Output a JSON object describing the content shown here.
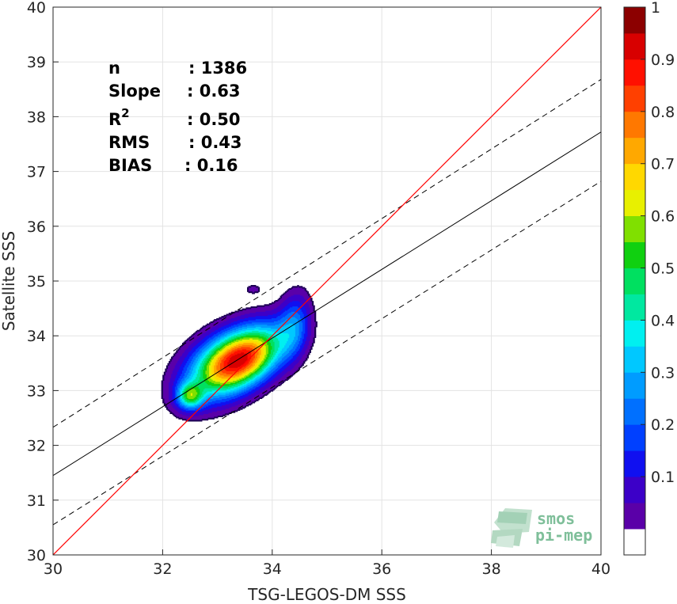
{
  "chart_data": {
    "type": "heatmap",
    "subtype": "filled-contour-density",
    "xlabel": "TSG-LEGOS-DM SSS",
    "ylabel": "Satellite SSS",
    "xlim": [
      30,
      40
    ],
    "ylim": [
      30,
      40
    ],
    "xticks": [
      30,
      32,
      34,
      36,
      38,
      40
    ],
    "yticks": [
      30,
      31,
      32,
      33,
      34,
      35,
      36,
      37,
      38,
      39,
      40
    ],
    "grid": true,
    "stats": [
      {
        "label": "n",
        "value": ": 1386"
      },
      {
        "label": "Slope",
        "value": ": 0.63"
      },
      {
        "label": "R",
        "sup": "2",
        "value": ": 0.50"
      },
      {
        "label": "RMS",
        "value": ": 0.43"
      },
      {
        "label": "BIAS",
        "value": ": 0.16"
      }
    ],
    "lines": {
      "identity": {
        "color": "#ff0000",
        "x": [
          30,
          40
        ],
        "y": [
          30,
          40
        ]
      },
      "fit": {
        "color": "#000000",
        "x": [
          30,
          40
        ],
        "y": [
          31.45,
          37.72
        ]
      },
      "fit_upper": {
        "color": "#000000",
        "dash": true,
        "x": [
          30,
          40
        ],
        "y": [
          32.33,
          38.68
        ]
      },
      "fit_lower": {
        "color": "#000000",
        "dash": true,
        "x": [
          30,
          40
        ],
        "y": [
          30.55,
          36.82
        ]
      }
    },
    "density_peaks": [
      {
        "cx": 33.5,
        "cy": 33.6,
        "sx": 0.5,
        "sy": 0.4,
        "rho": 0.45,
        "amp": 1.0
      },
      {
        "cx": 32.5,
        "cy": 32.9,
        "sx": 0.16,
        "sy": 0.16,
        "rho": 0.0,
        "amp": 0.55
      },
      {
        "cx": 34.4,
        "cy": 34.2,
        "sx": 0.2,
        "sy": 0.4,
        "rho": 0.2,
        "amp": 0.3
      },
      {
        "cx": 33.0,
        "cy": 33.4,
        "sx": 0.5,
        "sy": 0.45,
        "rho": 0.4,
        "amp": 0.45
      },
      {
        "cx": 33.65,
        "cy": 34.85,
        "sx": 0.1,
        "sy": 0.06,
        "rho": 0.0,
        "amp": 0.12
      }
    ],
    "colorbar": {
      "ticks": [
        "0.1",
        "0.2",
        "0.3",
        "0.4",
        "0.5",
        "0.6",
        "0.7",
        "0.8",
        "0.9",
        "1"
      ],
      "levels": [
        0,
        0.05,
        0.1,
        0.15,
        0.2,
        0.25,
        0.3,
        0.35,
        0.4,
        0.45,
        0.5,
        0.55,
        0.6,
        0.65,
        0.7,
        0.75,
        0.8,
        0.85,
        0.9,
        0.95,
        1
      ],
      "colors": [
        "#ffffff",
        "#5a00a8",
        "#3c00c8",
        "#1010f0",
        "#0040ff",
        "#0070ff",
        "#009cff",
        "#00c8ff",
        "#00f0f0",
        "#00e8a0",
        "#00e060",
        "#10d010",
        "#80e000",
        "#e8f000",
        "#ffd800",
        "#ffa800",
        "#ff7800",
        "#ff4000",
        "#ff1000",
        "#d80000",
        "#8c0000"
      ]
    },
    "watermark": {
      "line1": "smos",
      "line2": "pi-mep"
    }
  }
}
